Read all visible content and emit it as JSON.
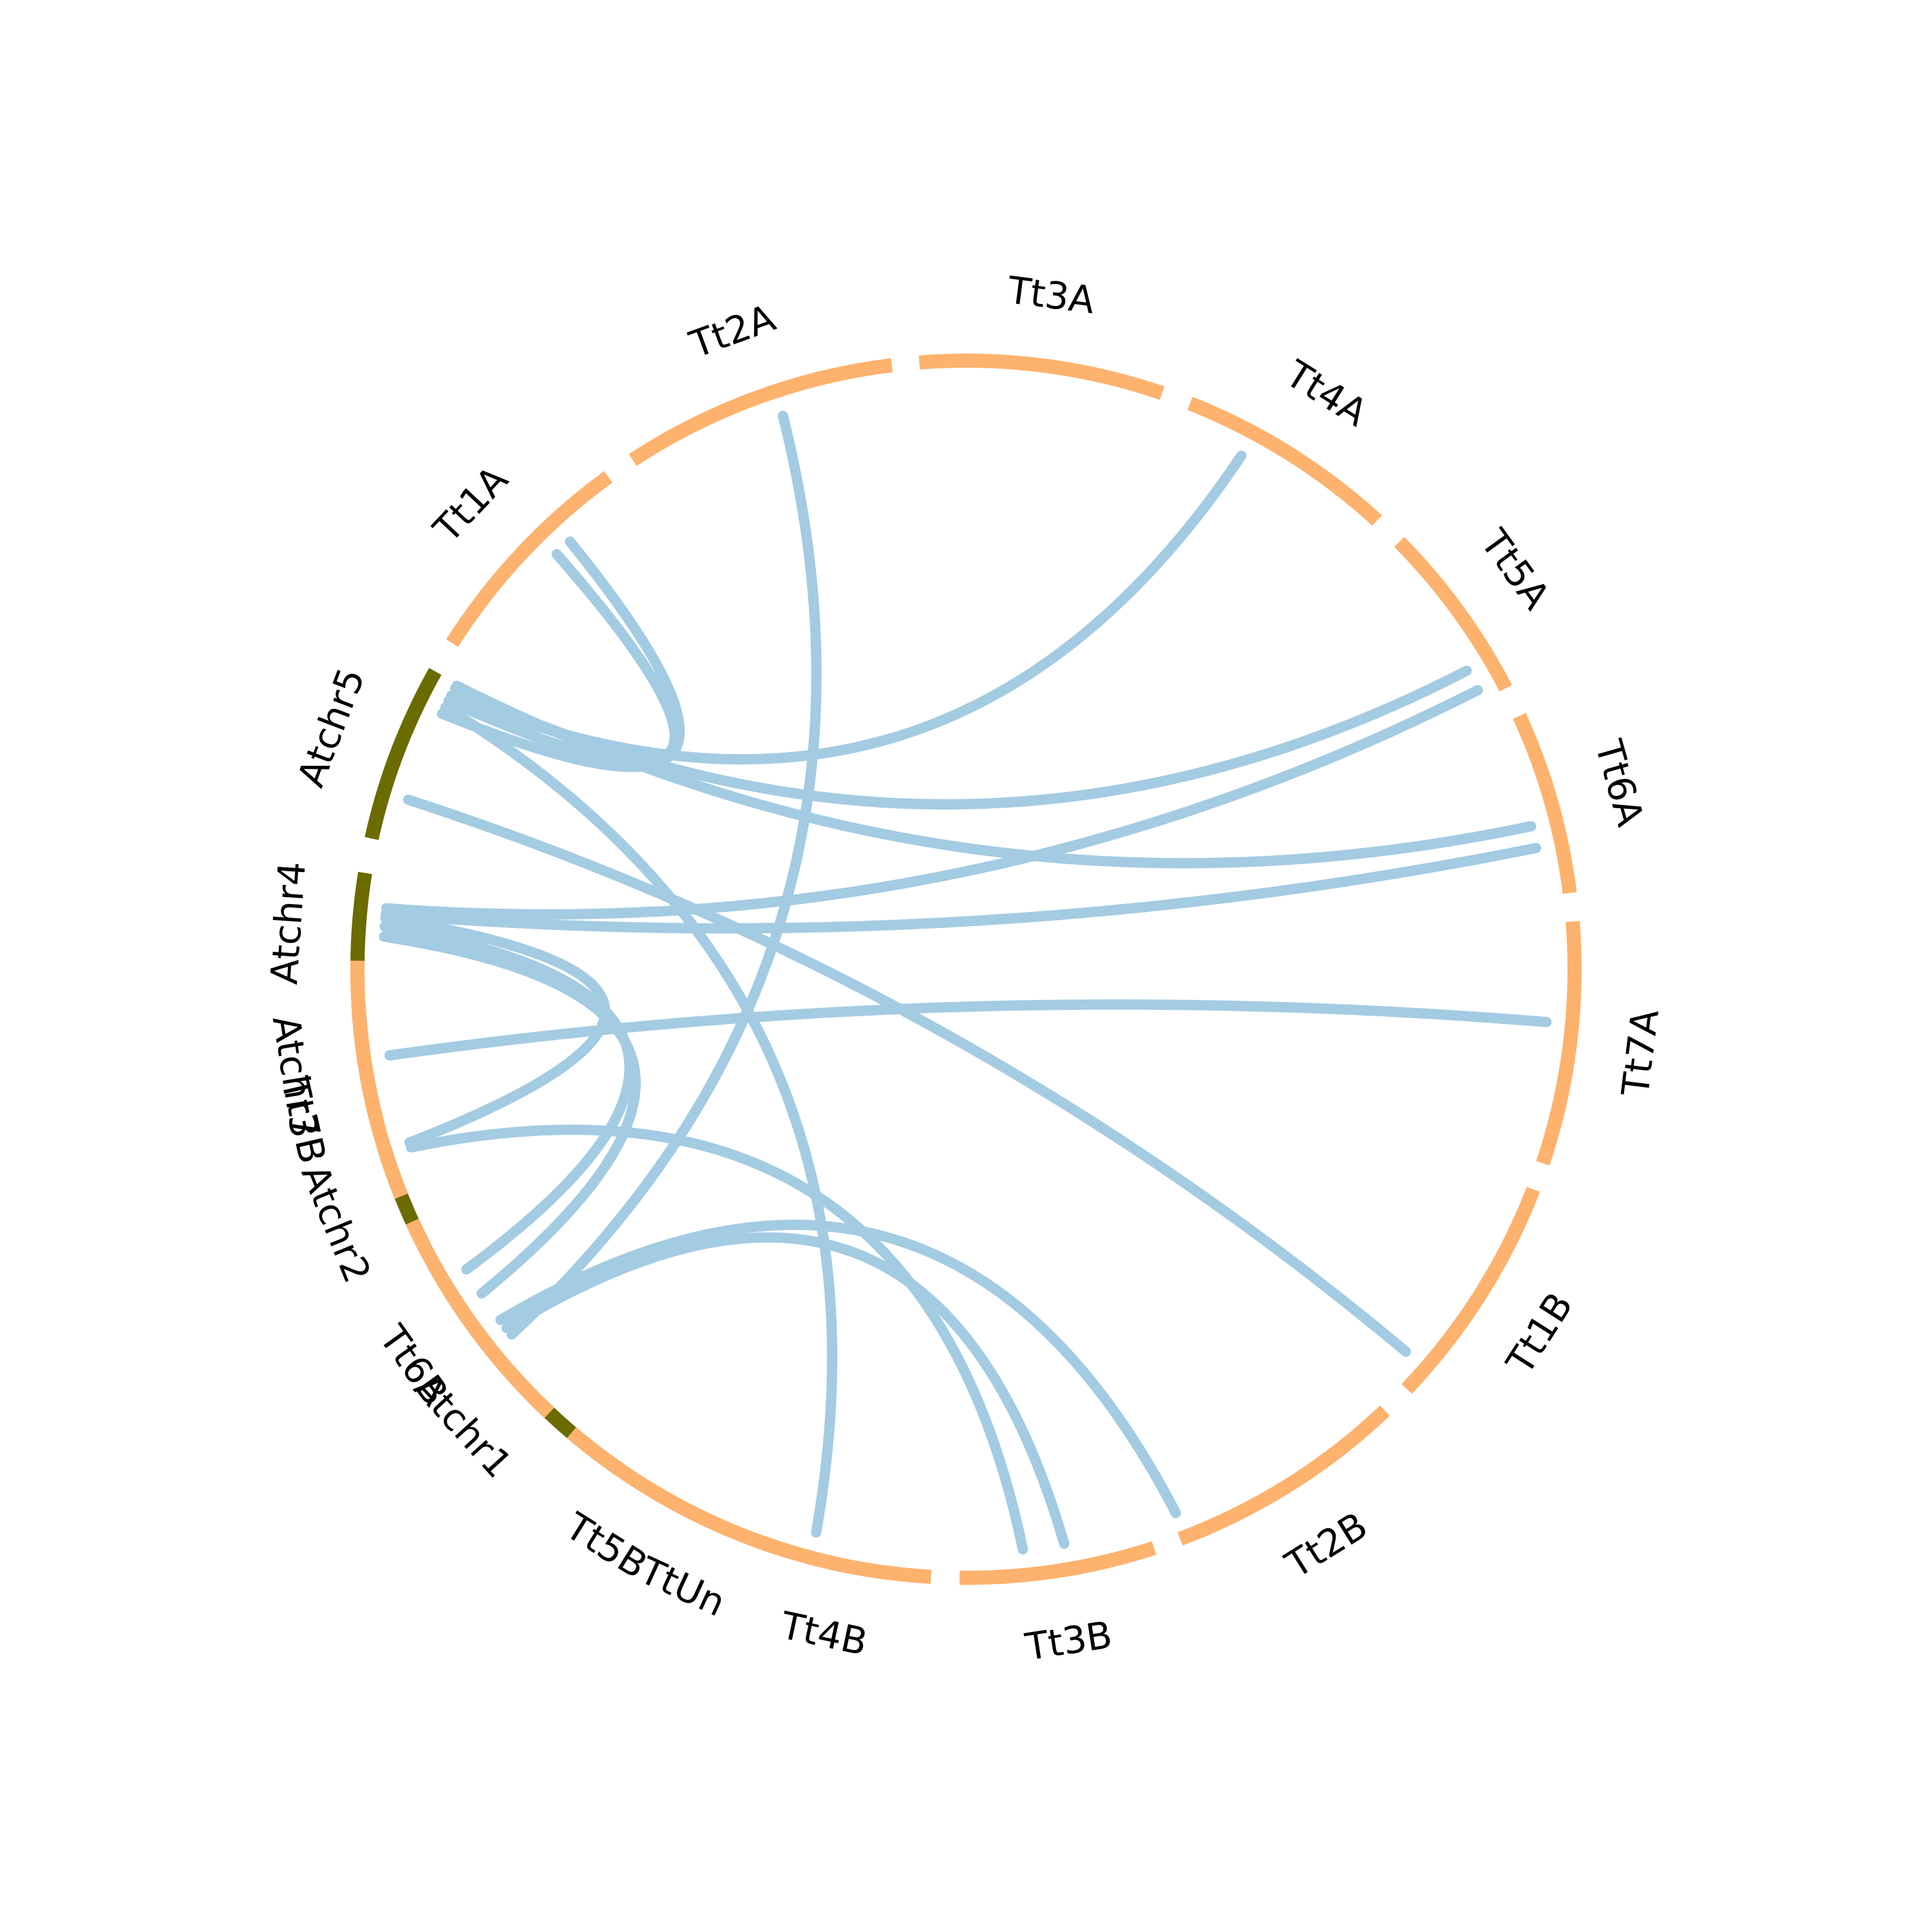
{
  "diagram": {
    "type": "circos-synteny",
    "colors": {
      "background": "#ffffff",
      "label": "#000000"
    },
    "segments": [
      {
        "id": "TtUn",
        "label": "TtUn",
        "color": "#fdb26e",
        "start_deg": 237.5,
        "end_deg": 253.2
      },
      {
        "id": "Atchr1",
        "label": "Atchr1",
        "color": "#6b6b00",
        "start_deg": 209.1,
        "end_deg": 235.4
      },
      {
        "id": "Atchr2",
        "label": "Atchr2",
        "color": "#6b6b00",
        "start_deg": 196.8,
        "end_deg": 207.2
      },
      {
        "id": "Atchr3",
        "label": "Atchr3",
        "color": "#6b6b00",
        "start_deg": 183.4,
        "end_deg": 194.8
      },
      {
        "id": "Atchr4",
        "label": "Atchr4",
        "color": "#6b6b00",
        "start_deg": 170.9,
        "end_deg": 181.3
      },
      {
        "id": "Atchr5",
        "label": "Atchr5",
        "color": "#6b6b00",
        "start_deg": 150.7,
        "end_deg": 167.6
      },
      {
        "id": "Tt1A",
        "label": "Tt1A",
        "color": "#fdb26e",
        "start_deg": 126.0,
        "end_deg": 147.6
      },
      {
        "id": "Tt2A",
        "label": "Tt2A",
        "color": "#fdb26e",
        "start_deg": 97.0,
        "end_deg": 123.2
      },
      {
        "id": "Tt3A",
        "label": "Tt3A",
        "color": "#fdb26e",
        "start_deg": 71.2,
        "end_deg": 94.4
      },
      {
        "id": "Tt4A",
        "label": "Tt4A",
        "color": "#fdb26e",
        "start_deg": 47.5,
        "end_deg": 68.4
      },
      {
        "id": "Tt5A",
        "label": "Tt5A",
        "color": "#fdb26e",
        "start_deg": 27.5,
        "end_deg": 44.6
      },
      {
        "id": "Tt6A",
        "label": "Tt6A",
        "color": "#fdb26e",
        "start_deg": 7.2,
        "end_deg": 24.6
      },
      {
        "id": "Tt7A",
        "label": "Tt7A",
        "color": "#fdb26e",
        "start_deg": -18.6,
        "end_deg": 4.5
      },
      {
        "id": "Tt1B",
        "label": "Tt1B",
        "color": "#fdb26e",
        "start_deg": -43.6,
        "end_deg": -21.2
      },
      {
        "id": "Tt2B",
        "label": "Tt2B",
        "color": "#fdb26e",
        "start_deg": -69.4,
        "end_deg": -46.5
      },
      {
        "id": "Tt3B",
        "label": "Tt3B",
        "color": "#fdb26e",
        "start_deg": -90.6,
        "end_deg": -72.0
      },
      {
        "id": "Tt4B",
        "label": "Tt4B",
        "color": "#fdb26e",
        "start_deg": -110.8,
        "end_deg": -93.3
      },
      {
        "id": "Tt5B",
        "label": "Tt5B",
        "color": "#fdb26e",
        "start_deg": -130.4,
        "end_deg": -113.5
      },
      {
        "id": "Tt6B",
        "label": "Tt6B",
        "color": "#fdb26e",
        "start_deg": -155.5,
        "end_deg": -133.2
      },
      {
        "id": "Tt7B",
        "label": "Tt7B",
        "color": "#fdb26e",
        "start_deg": -176.2,
        "end_deg": -158.1
      },
      {
        "id": "TtUnB",
        "label": "",
        "color": "#fdb26e",
        "start_deg": 179.2,
        "end_deg": 184.0
      }
    ],
    "links": [
      {
        "from": "Atchr1",
        "to": "Tt3B",
        "a_deg": 218.0,
        "b_deg": -80.3,
        "color": "#a3cbe2"
      },
      {
        "from": "Atchr1",
        "to": "Tt2B",
        "a_deg": 217.0,
        "b_deg": -68.9,
        "color": "#a3cbe2"
      },
      {
        "from": "Atchr1",
        "to": "Tt2A",
        "a_deg": 218.8,
        "b_deg": 108.3,
        "color": "#a3cbe2"
      },
      {
        "from": "Atchr2",
        "to": "Tt3B",
        "a_deg": 197.8,
        "b_deg": -84.4,
        "color": "#a3cbe2"
      },
      {
        "from": "Atchr3",
        "to": "Tt7A",
        "a_deg": 188.5,
        "b_deg": -5.2,
        "color": "#a3cbe2"
      },
      {
        "from": "Atchr4",
        "to": "Tt6B",
        "a_deg": 176.8,
        "b_deg": -146.2,
        "color": "#a3cbe2"
      },
      {
        "from": "Atchr4",
        "to": "Tt6B",
        "a_deg": 175.8,
        "b_deg": -149.0,
        "color": "#a3cbe2"
      },
      {
        "from": "Atchr4",
        "to": "Tt7B",
        "a_deg": 175.0,
        "b_deg": -162.7,
        "color": "#a3cbe2"
      },
      {
        "from": "Atchr4",
        "to": "Tt6A",
        "a_deg": 174.6,
        "b_deg": 12.0,
        "color": "#a3cbe2"
      },
      {
        "from": "Atchr4",
        "to": "Tt5A",
        "a_deg": 174.0,
        "b_deg": 28.6,
        "color": "#a3cbe2"
      },
      {
        "from": "Atchr5",
        "to": "Tt1B",
        "a_deg": 163.1,
        "b_deg": -41.0,
        "color": "#a3cbe2"
      },
      {
        "from": "Atchr5",
        "to": "Tt4B",
        "a_deg": 153.3,
        "b_deg": -104.9,
        "color": "#a3cbe2"
      },
      {
        "from": "Atchr5",
        "to": "Tt1A",
        "a_deg": 152.6,
        "b_deg": 134.6,
        "color": "#a3cbe2"
      },
      {
        "from": "Atchr5",
        "to": "Tt1A",
        "a_deg": 154.0,
        "b_deg": 132.8,
        "color": "#a3cbe2"
      },
      {
        "from": "Atchr5",
        "to": "Tt4A",
        "a_deg": 152.0,
        "b_deg": 61.8,
        "color": "#a3cbe2"
      },
      {
        "from": "Atchr5",
        "to": "Tt5A",
        "a_deg": 151.2,
        "b_deg": 30.8,
        "color": "#a3cbe2"
      },
      {
        "from": "Atchr5",
        "to": "Tt6A",
        "a_deg": 150.9,
        "b_deg": 14.2,
        "color": "#a3cbe2"
      }
    ]
  }
}
